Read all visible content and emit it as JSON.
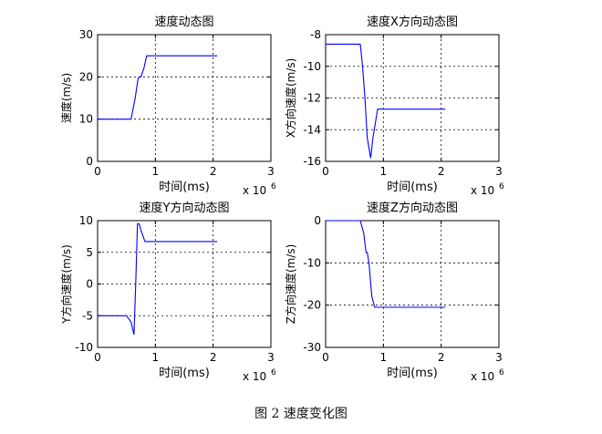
{
  "figure": {
    "caption": "图 2  速度变化图"
  },
  "chart_data": [
    {
      "type": "line",
      "title": "速度动态图",
      "xlabel": "时间(ms)",
      "ylabel": "速度(m/s)",
      "x_multiplier": "x 10",
      "x_exponent": "6",
      "xlim": [
        0,
        3
      ],
      "ylim": [
        0,
        30
      ],
      "xticks": [
        0,
        1,
        2,
        3
      ],
      "yticks": [
        0,
        10,
        20,
        30
      ],
      "grid": true,
      "series": [
        {
          "color": "#0000ff",
          "x": [
            0,
            0.58,
            0.65,
            0.7,
            0.72,
            0.75,
            0.8,
            0.85,
            2.07
          ],
          "y": [
            10,
            10,
            15,
            19.5,
            20,
            20,
            22,
            25,
            25
          ]
        }
      ]
    },
    {
      "type": "line",
      "title": "速度X方向动态图",
      "xlabel": "时间(ms)",
      "ylabel": "X方向速度(m/s)",
      "x_multiplier": "x 10",
      "x_exponent": "6",
      "xlim": [
        0,
        3
      ],
      "ylim": [
        -16,
        -8
      ],
      "xticks": [
        0,
        1,
        2,
        3
      ],
      "yticks": [
        -16,
        -14,
        -12,
        -10,
        -8
      ],
      "grid": true,
      "series": [
        {
          "color": "#0000ff",
          "x": [
            0,
            0.6,
            0.64,
            0.68,
            0.72,
            0.78,
            0.82,
            0.9,
            2.07
          ],
          "y": [
            -8.6,
            -8.6,
            -10,
            -12,
            -14.5,
            -15.8,
            -14.5,
            -12.7,
            -12.7
          ]
        }
      ]
    },
    {
      "type": "line",
      "title": "速度Y方向动态图",
      "xlabel": "时间(ms)",
      "ylabel": "Y方向速度(m/s)",
      "x_multiplier": "x 10",
      "x_exponent": "6",
      "xlim": [
        0,
        3
      ],
      "ylim": [
        -10,
        10
      ],
      "xticks": [
        0,
        1,
        2,
        3
      ],
      "yticks": [
        -10,
        -5,
        0,
        5,
        10
      ],
      "grid": true,
      "series": [
        {
          "color": "#0000ff",
          "x": [
            0,
            0.5,
            0.58,
            0.63,
            0.66,
            0.69,
            0.72,
            0.75,
            0.82,
            2.07
          ],
          "y": [
            -5,
            -5,
            -6,
            -8,
            0,
            9.5,
            9.5,
            8.5,
            6.7,
            6.7
          ]
        }
      ]
    },
    {
      "type": "line",
      "title": "速度Z方向动态图",
      "xlabel": "时间(ms)",
      "ylabel": "Z方向速度(m/s)",
      "x_multiplier": "x 10",
      "x_exponent": "6",
      "xlim": [
        0,
        3
      ],
      "ylim": [
        -30,
        0
      ],
      "xticks": [
        0,
        1,
        2,
        3
      ],
      "yticks": [
        -30,
        -20,
        -10,
        0
      ],
      "grid": true,
      "series": [
        {
          "color": "#0000ff",
          "x": [
            0,
            0.6,
            0.66,
            0.7,
            0.72,
            0.75,
            0.8,
            0.85,
            2.07
          ],
          "y": [
            0,
            0,
            -3,
            -7.5,
            -7.5,
            -10,
            -18,
            -20.5,
            -20.5
          ]
        }
      ]
    }
  ]
}
